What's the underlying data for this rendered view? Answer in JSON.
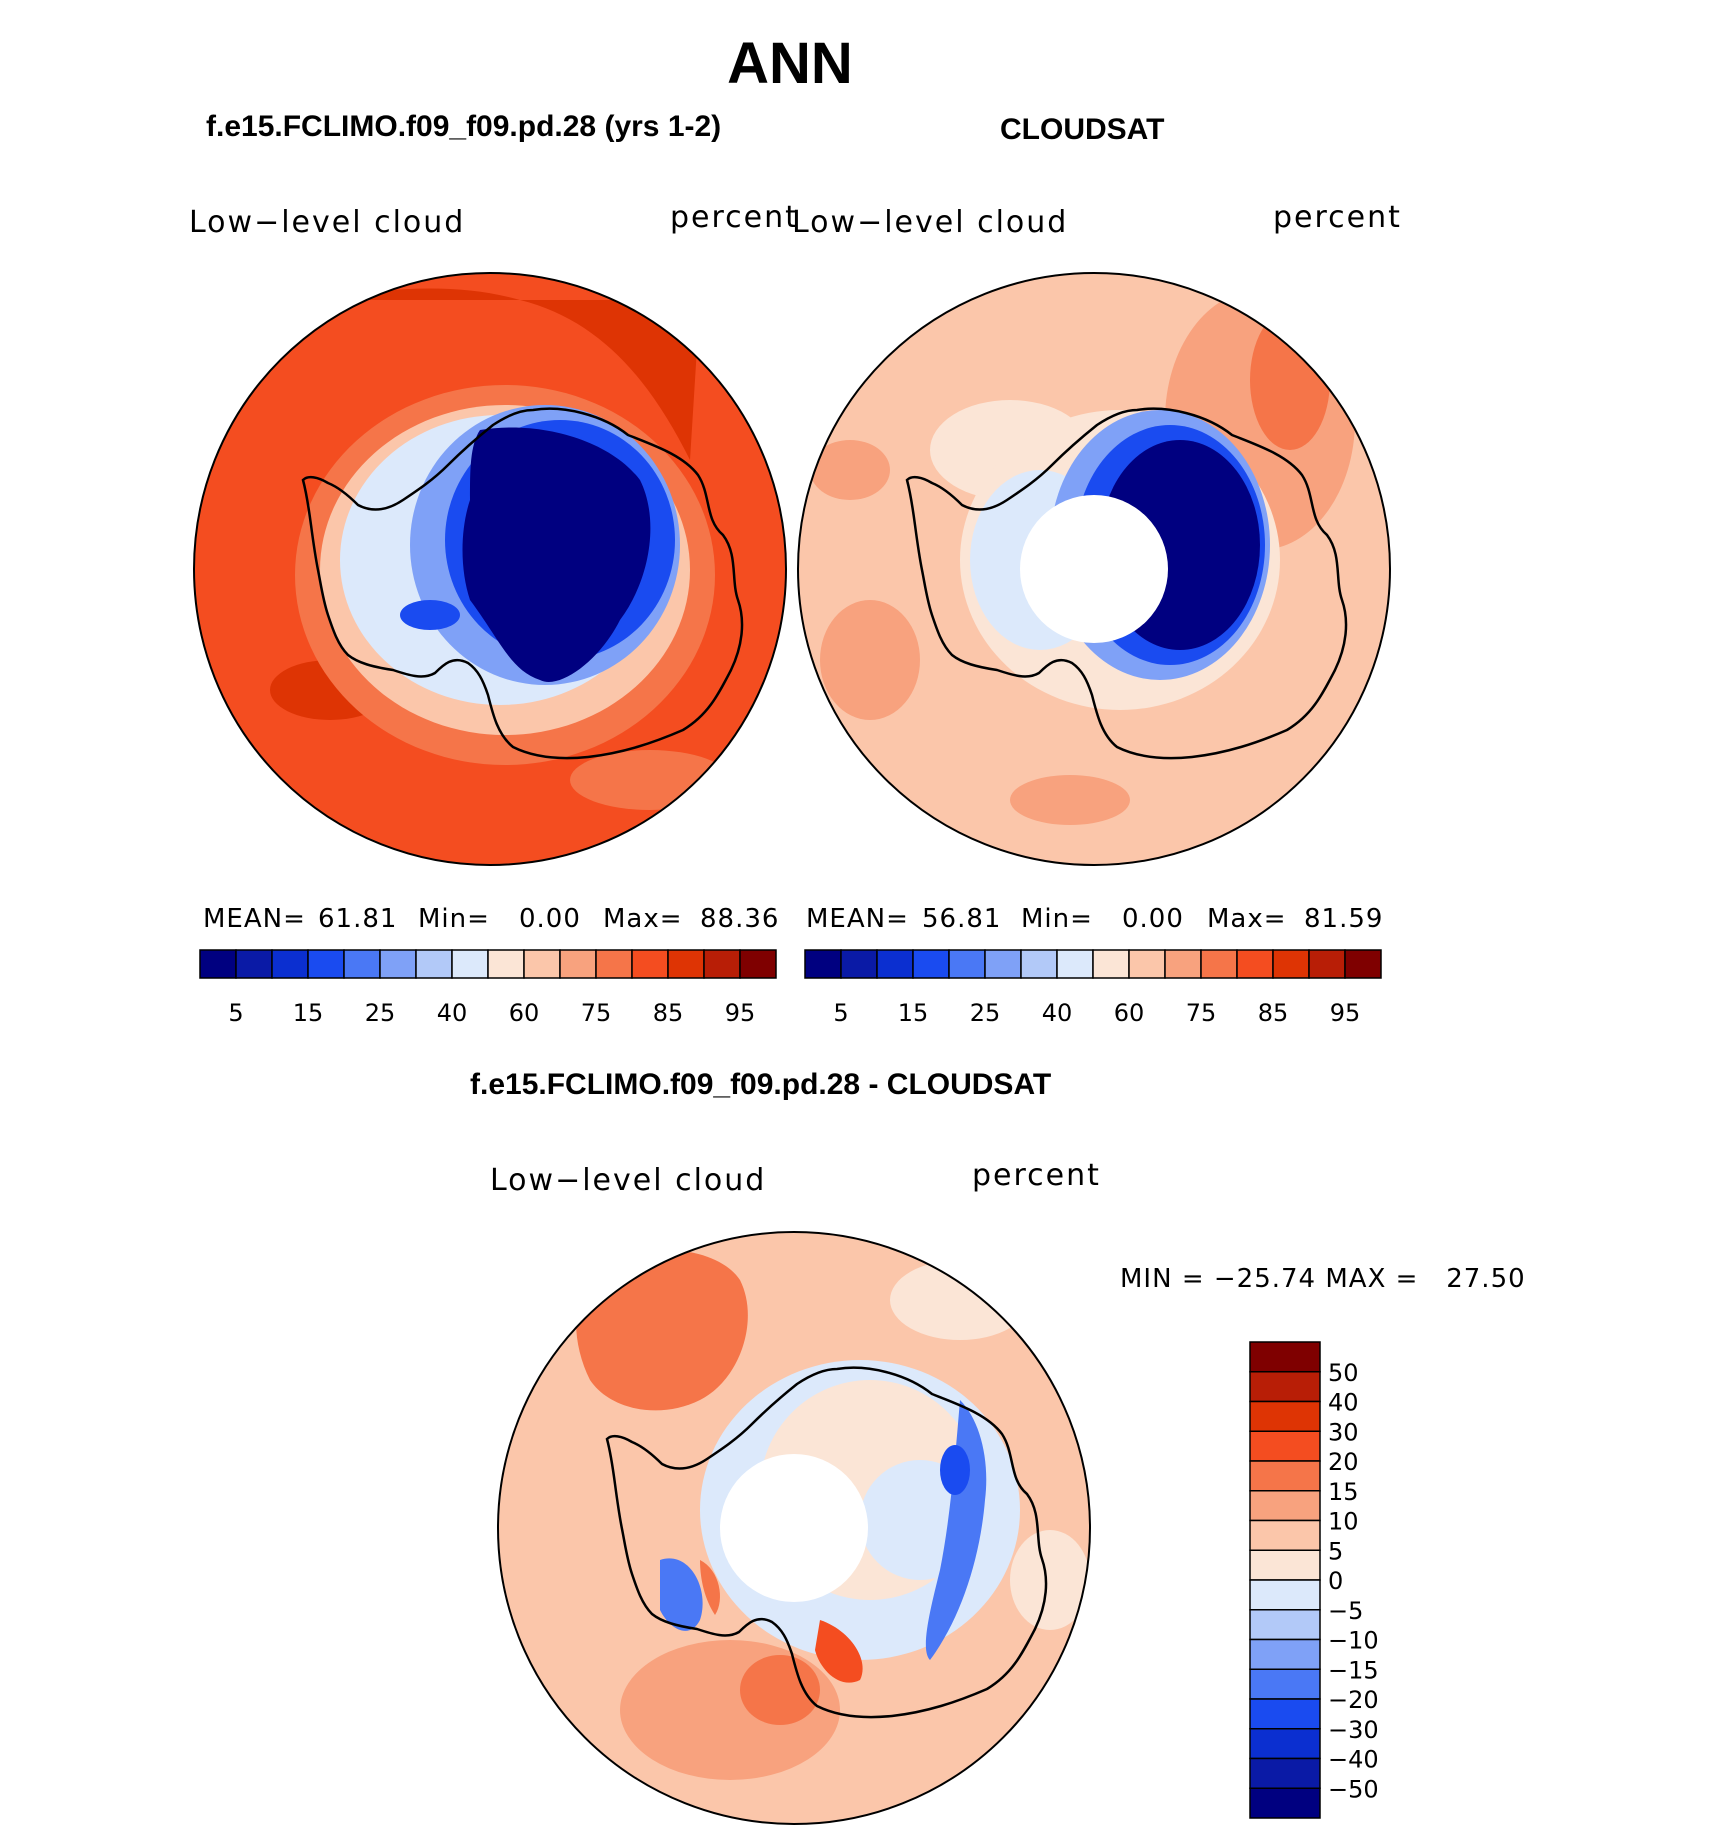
{
  "title": "ANN",
  "panels": {
    "model": {
      "header": "f.e15.FCLIMO.f09_f09.pd.28 (yrs 1-2)",
      "variable": "Low−level cloud",
      "units": "percent",
      "mean_label": "MEAN=",
      "mean_value": "61.81",
      "min_label": "Min=",
      "min_value": "0.00",
      "max_label": "Max=",
      "max_value": "88.36"
    },
    "obs": {
      "header": "CLOUDSAT",
      "variable": "Low−level cloud",
      "units": "percent",
      "mean_label": "MEAN=",
      "mean_value": "56.81",
      "min_label": "Min=",
      "min_value": "0.00",
      "max_label": "Max=",
      "max_value": "81.59"
    },
    "diff": {
      "header": "f.e15.FCLIMO.f09_f09.pd.28 - CLOUDSAT",
      "variable": "Low−level cloud",
      "units": "percent",
      "minmax_text": "MIN = −25.74 MAX =   27.50"
    }
  },
  "abs_colorbar": {
    "colors": [
      "#000080",
      "#0a1aa6",
      "#0b2fd0",
      "#1a4bf0",
      "#4a78f5",
      "#7fa1f7",
      "#b2c9f8",
      "#dce9fb",
      "#fbe5d6",
      "#fbc6aa",
      "#f8a27e",
      "#f57549",
      "#f44d20",
      "#de3404",
      "#b81e06",
      "#7f0000"
    ],
    "tick_labels": [
      "5",
      "15",
      "25",
      "40",
      "60",
      "75",
      "85",
      "95"
    ]
  },
  "diff_colorbar": {
    "colors_top_to_bottom": [
      "#7f0000",
      "#b81e06",
      "#de3404",
      "#f44d20",
      "#f57549",
      "#f8a27e",
      "#fbc6aa",
      "#fbe5d6",
      "#dce9fb",
      "#b2c9f8",
      "#7fa1f7",
      "#4a78f5",
      "#1a4bf0",
      "#0b2fd0",
      "#0a1aa6",
      "#000080"
    ],
    "tick_labels": [
      "50",
      "40",
      "30",
      "20",
      "15",
      "10",
      "5",
      "0",
      "−5",
      "−10",
      "−15",
      "−20",
      "−30",
      "−40",
      "−50"
    ]
  }
}
